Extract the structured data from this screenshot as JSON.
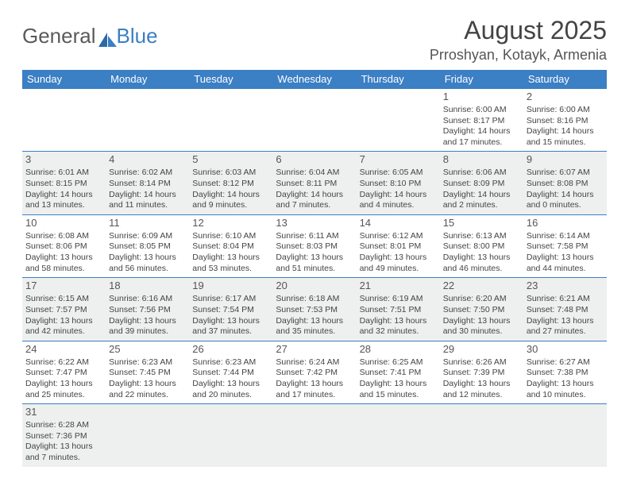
{
  "logo": {
    "text_a": "General",
    "text_b": "Blue"
  },
  "title": "August 2025",
  "location": "Prroshyan, Kotayk, Armenia",
  "colors": {
    "header_bg": "#3b7fc4",
    "header_text": "#ffffff",
    "row_odd_bg": "#eef0f0",
    "row_even_bg": "#ffffff",
    "border": "#3b7fc4",
    "text": "#444444"
  },
  "day_headers": [
    "Sunday",
    "Monday",
    "Tuesday",
    "Wednesday",
    "Thursday",
    "Friday",
    "Saturday"
  ],
  "weeks": [
    [
      null,
      null,
      null,
      null,
      null,
      {
        "n": "1",
        "sr": "Sunrise: 6:00 AM",
        "ss": "Sunset: 8:17 PM",
        "dl": "Daylight: 14 hours and 17 minutes."
      },
      {
        "n": "2",
        "sr": "Sunrise: 6:00 AM",
        "ss": "Sunset: 8:16 PM",
        "dl": "Daylight: 14 hours and 15 minutes."
      }
    ],
    [
      {
        "n": "3",
        "sr": "Sunrise: 6:01 AM",
        "ss": "Sunset: 8:15 PM",
        "dl": "Daylight: 14 hours and 13 minutes."
      },
      {
        "n": "4",
        "sr": "Sunrise: 6:02 AM",
        "ss": "Sunset: 8:14 PM",
        "dl": "Daylight: 14 hours and 11 minutes."
      },
      {
        "n": "5",
        "sr": "Sunrise: 6:03 AM",
        "ss": "Sunset: 8:12 PM",
        "dl": "Daylight: 14 hours and 9 minutes."
      },
      {
        "n": "6",
        "sr": "Sunrise: 6:04 AM",
        "ss": "Sunset: 8:11 PM",
        "dl": "Daylight: 14 hours and 7 minutes."
      },
      {
        "n": "7",
        "sr": "Sunrise: 6:05 AM",
        "ss": "Sunset: 8:10 PM",
        "dl": "Daylight: 14 hours and 4 minutes."
      },
      {
        "n": "8",
        "sr": "Sunrise: 6:06 AM",
        "ss": "Sunset: 8:09 PM",
        "dl": "Daylight: 14 hours and 2 minutes."
      },
      {
        "n": "9",
        "sr": "Sunrise: 6:07 AM",
        "ss": "Sunset: 8:08 PM",
        "dl": "Daylight: 14 hours and 0 minutes."
      }
    ],
    [
      {
        "n": "10",
        "sr": "Sunrise: 6:08 AM",
        "ss": "Sunset: 8:06 PM",
        "dl": "Daylight: 13 hours and 58 minutes."
      },
      {
        "n": "11",
        "sr": "Sunrise: 6:09 AM",
        "ss": "Sunset: 8:05 PM",
        "dl": "Daylight: 13 hours and 56 minutes."
      },
      {
        "n": "12",
        "sr": "Sunrise: 6:10 AM",
        "ss": "Sunset: 8:04 PM",
        "dl": "Daylight: 13 hours and 53 minutes."
      },
      {
        "n": "13",
        "sr": "Sunrise: 6:11 AM",
        "ss": "Sunset: 8:03 PM",
        "dl": "Daylight: 13 hours and 51 minutes."
      },
      {
        "n": "14",
        "sr": "Sunrise: 6:12 AM",
        "ss": "Sunset: 8:01 PM",
        "dl": "Daylight: 13 hours and 49 minutes."
      },
      {
        "n": "15",
        "sr": "Sunrise: 6:13 AM",
        "ss": "Sunset: 8:00 PM",
        "dl": "Daylight: 13 hours and 46 minutes."
      },
      {
        "n": "16",
        "sr": "Sunrise: 6:14 AM",
        "ss": "Sunset: 7:58 PM",
        "dl": "Daylight: 13 hours and 44 minutes."
      }
    ],
    [
      {
        "n": "17",
        "sr": "Sunrise: 6:15 AM",
        "ss": "Sunset: 7:57 PM",
        "dl": "Daylight: 13 hours and 42 minutes."
      },
      {
        "n": "18",
        "sr": "Sunrise: 6:16 AM",
        "ss": "Sunset: 7:56 PM",
        "dl": "Daylight: 13 hours and 39 minutes."
      },
      {
        "n": "19",
        "sr": "Sunrise: 6:17 AM",
        "ss": "Sunset: 7:54 PM",
        "dl": "Daylight: 13 hours and 37 minutes."
      },
      {
        "n": "20",
        "sr": "Sunrise: 6:18 AM",
        "ss": "Sunset: 7:53 PM",
        "dl": "Daylight: 13 hours and 35 minutes."
      },
      {
        "n": "21",
        "sr": "Sunrise: 6:19 AM",
        "ss": "Sunset: 7:51 PM",
        "dl": "Daylight: 13 hours and 32 minutes."
      },
      {
        "n": "22",
        "sr": "Sunrise: 6:20 AM",
        "ss": "Sunset: 7:50 PM",
        "dl": "Daylight: 13 hours and 30 minutes."
      },
      {
        "n": "23",
        "sr": "Sunrise: 6:21 AM",
        "ss": "Sunset: 7:48 PM",
        "dl": "Daylight: 13 hours and 27 minutes."
      }
    ],
    [
      {
        "n": "24",
        "sr": "Sunrise: 6:22 AM",
        "ss": "Sunset: 7:47 PM",
        "dl": "Daylight: 13 hours and 25 minutes."
      },
      {
        "n": "25",
        "sr": "Sunrise: 6:23 AM",
        "ss": "Sunset: 7:45 PM",
        "dl": "Daylight: 13 hours and 22 minutes."
      },
      {
        "n": "26",
        "sr": "Sunrise: 6:23 AM",
        "ss": "Sunset: 7:44 PM",
        "dl": "Daylight: 13 hours and 20 minutes."
      },
      {
        "n": "27",
        "sr": "Sunrise: 6:24 AM",
        "ss": "Sunset: 7:42 PM",
        "dl": "Daylight: 13 hours and 17 minutes."
      },
      {
        "n": "28",
        "sr": "Sunrise: 6:25 AM",
        "ss": "Sunset: 7:41 PM",
        "dl": "Daylight: 13 hours and 15 minutes."
      },
      {
        "n": "29",
        "sr": "Sunrise: 6:26 AM",
        "ss": "Sunset: 7:39 PM",
        "dl": "Daylight: 13 hours and 12 minutes."
      },
      {
        "n": "30",
        "sr": "Sunrise: 6:27 AM",
        "ss": "Sunset: 7:38 PM",
        "dl": "Daylight: 13 hours and 10 minutes."
      }
    ],
    [
      {
        "n": "31",
        "sr": "Sunrise: 6:28 AM",
        "ss": "Sunset: 7:36 PM",
        "dl": "Daylight: 13 hours and 7 minutes."
      },
      null,
      null,
      null,
      null,
      null,
      null
    ]
  ]
}
